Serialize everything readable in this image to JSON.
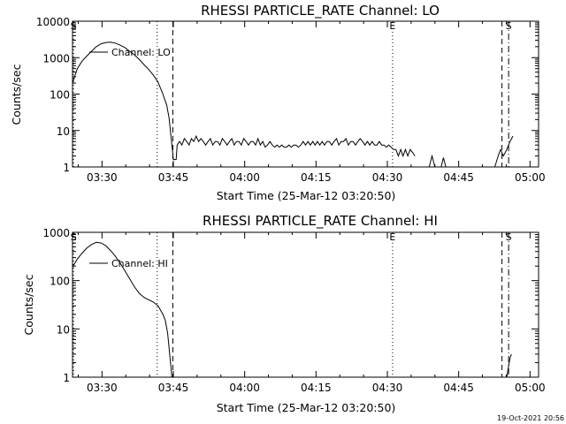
{
  "chart_data": [
    {
      "type": "line",
      "title": "RHESSI PARTICLE_RATE Channel: LO",
      "xlabel": "Start Time (25-Mar-12 03:20:50)",
      "ylabel": "Counts/sec",
      "yscale": "log",
      "ylim": [
        1,
        10000
      ],
      "xlim_minutes": [
        3.0,
        101.0
      ],
      "x_ticks": [
        {
          "label": "03:30",
          "min": 9.2
        },
        {
          "label": "03:45",
          "min": 24.2
        },
        {
          "label": "04:00",
          "min": 39.2
        },
        {
          "label": "04:15",
          "min": 54.2
        },
        {
          "label": "04:30",
          "min": 69.2
        },
        {
          "label": "04:45",
          "min": 84.2
        },
        {
          "label": "05:00",
          "min": 99.2
        }
      ],
      "y_ticks": [
        {
          "label": "1",
          "value": 1
        },
        {
          "label": "10",
          "value": 10
        },
        {
          "label": "100",
          "value": 100
        },
        {
          "label": "1000",
          "value": 1000
        },
        {
          "label": "10000",
          "value": 10000
        }
      ],
      "legend": {
        "label": "Channel: LO",
        "placement": "top-left"
      },
      "markers": [
        {
          "label": "S",
          "min": 3.2,
          "style": "dotted"
        },
        {
          "label": "",
          "min": 20.8,
          "style": "dotted"
        },
        {
          "label": "",
          "min": 24.1,
          "style": "dashed"
        },
        {
          "label": "E",
          "min": 70.3,
          "style": "dotted"
        },
        {
          "label": "",
          "min": 93.3,
          "style": "dashed"
        },
        {
          "label": "S",
          "min": 94.7,
          "style": "dashdot"
        }
      ],
      "series": [
        {
          "name": "Channel: LO",
          "segments": [
            [
              [
                3.0,
                200
              ],
              [
                4.0,
                500
              ],
              [
                5.0,
                800
              ],
              [
                6.0,
                1100
              ],
              [
                7.0,
                1500
              ],
              [
                8.0,
                2000
              ],
              [
                9.0,
                2400
              ],
              [
                10.0,
                2600
              ],
              [
                11.0,
                2650
              ],
              [
                12.0,
                2500
              ],
              [
                13.0,
                2200
              ],
              [
                14.0,
                1900
              ],
              [
                15.0,
                1500
              ],
              [
                16.0,
                1200
              ],
              [
                17.0,
                900
              ],
              [
                18.0,
                650
              ],
              [
                19.0,
                480
              ],
              [
                20.0,
                330
              ],
              [
                21.0,
                210
              ],
              [
                22.0,
                100
              ],
              [
                22.8,
                50
              ],
              [
                23.3,
                22
              ],
              [
                23.7,
                7
              ],
              [
                24.0,
                3
              ],
              [
                24.2,
                1.6
              ],
              [
                24.8,
                1.6
              ],
              [
                25.0,
                4
              ],
              [
                25.5,
                5
              ],
              [
                26,
                4
              ],
              [
                26.5,
                6
              ],
              [
                27,
                5
              ],
              [
                27.5,
                4
              ],
              [
                28,
                6
              ],
              [
                28.5,
                5
              ],
              [
                29,
                7
              ],
              [
                29.5,
                5
              ],
              [
                30,
                6
              ],
              [
                30.5,
                5
              ],
              [
                31,
                4
              ],
              [
                31.5,
                5
              ],
              [
                32,
                6
              ],
              [
                32.5,
                4
              ],
              [
                33,
                5
              ],
              [
                33.5,
                5
              ],
              [
                34,
                4
              ],
              [
                34.5,
                6
              ],
              [
                35,
                5
              ],
              [
                35.5,
                4
              ],
              [
                36,
                5
              ],
              [
                36.5,
                6
              ],
              [
                37,
                4
              ],
              [
                37.5,
                5
              ],
              [
                38,
                5
              ],
              [
                38.5,
                4
              ],
              [
                39,
                6
              ],
              [
                39.5,
                5
              ],
              [
                40,
                4
              ],
              [
                40.5,
                5
              ],
              [
                41,
                5
              ],
              [
                41.5,
                4
              ],
              [
                42,
                6
              ],
              [
                42.5,
                4
              ],
              [
                43,
                5
              ],
              [
                43.5,
                3.5
              ],
              [
                44,
                4
              ],
              [
                44.5,
                5
              ],
              [
                45,
                4
              ],
              [
                45.5,
                3.5
              ],
              [
                46,
                4
              ],
              [
                46.5,
                3.5
              ],
              [
                47,
                4
              ],
              [
                47.5,
                3.5
              ],
              [
                48,
                3.5
              ],
              [
                48.5,
                4
              ],
              [
                49,
                3.5
              ],
              [
                49.5,
                4
              ],
              [
                50,
                4
              ],
              [
                50.5,
                3.5
              ],
              [
                51,
                4
              ],
              [
                51.5,
                5
              ],
              [
                52,
                4
              ],
              [
                52.5,
                5
              ],
              [
                53,
                4
              ],
              [
                53.5,
                5
              ],
              [
                54,
                4
              ],
              [
                54.5,
                5
              ],
              [
                55,
                4
              ],
              [
                55.5,
                5
              ],
              [
                56,
                4
              ],
              [
                56.5,
                5
              ],
              [
                57,
                5
              ],
              [
                57.5,
                4
              ],
              [
                58,
                5
              ],
              [
                58.5,
                6
              ],
              [
                59,
                4
              ],
              [
                59.5,
                5
              ],
              [
                60,
                5
              ],
              [
                60.5,
                6
              ],
              [
                61,
                4
              ],
              [
                61.5,
                5
              ],
              [
                62,
                5
              ],
              [
                62.5,
                4
              ],
              [
                63,
                5
              ],
              [
                63.5,
                6
              ],
              [
                64,
                5
              ],
              [
                64.5,
                4
              ],
              [
                65,
                5
              ],
              [
                65.5,
                4
              ],
              [
                66,
                5
              ],
              [
                66.5,
                4
              ],
              [
                67,
                4
              ],
              [
                67.5,
                5
              ],
              [
                68,
                4
              ],
              [
                68.5,
                4
              ],
              [
                69,
                3.5
              ],
              [
                69.5,
                4
              ],
              [
                70,
                3.5
              ],
              [
                70.5,
                3
              ],
              [
                71,
                3
              ],
              [
                71.5,
                2
              ],
              [
                72,
                3
              ],
              [
                72.5,
                2
              ],
              [
                73,
                3
              ],
              [
                73.5,
                2
              ],
              [
                74,
                3
              ],
              [
                74.5,
                2.5
              ],
              [
                75,
                2
              ]
            ],
            [
              [
                78.0,
                1
              ],
              [
                78.6,
                2
              ],
              [
                79.2,
                1
              ]
            ],
            [
              [
                80.5,
                1
              ],
              [
                81.0,
                1.8
              ],
              [
                81.5,
                1
              ]
            ],
            [
              [
                91.8,
                1
              ],
              [
                92.5,
                2
              ],
              [
                93.0,
                3
              ],
              [
                93.6,
                2
              ],
              [
                94.3,
                3
              ],
              [
                95.0,
                5
              ],
              [
                95.6,
                7
              ]
            ]
          ]
        }
      ]
    },
    {
      "type": "line",
      "title": "RHESSI PARTICLE_RATE Channel: HI",
      "xlabel": "Start Time (25-Mar-12 03:20:50)",
      "ylabel": "Counts/sec",
      "yscale": "log",
      "ylim": [
        1,
        1000
      ],
      "xlim_minutes": [
        3.0,
        101.0
      ],
      "x_ticks": [
        {
          "label": "03:30",
          "min": 9.2
        },
        {
          "label": "03:45",
          "min": 24.2
        },
        {
          "label": "04:00",
          "min": 39.2
        },
        {
          "label": "04:15",
          "min": 54.2
        },
        {
          "label": "04:30",
          "min": 69.2
        },
        {
          "label": "04:45",
          "min": 84.2
        },
        {
          "label": "05:00",
          "min": 99.2
        }
      ],
      "y_ticks": [
        {
          "label": "1",
          "value": 1
        },
        {
          "label": "10",
          "value": 10
        },
        {
          "label": "100",
          "value": 100
        },
        {
          "label": "1000",
          "value": 1000
        }
      ],
      "legend": {
        "label": "Channel: HI",
        "placement": "top-left"
      },
      "markers": [
        {
          "label": "S",
          "min": 3.2,
          "style": "dotted"
        },
        {
          "label": "",
          "min": 20.8,
          "style": "dotted"
        },
        {
          "label": "",
          "min": 24.1,
          "style": "dashed"
        },
        {
          "label": "E",
          "min": 70.3,
          "style": "dotted"
        },
        {
          "label": "",
          "min": 93.3,
          "style": "dashed"
        },
        {
          "label": "S",
          "min": 94.7,
          "style": "dashdot"
        }
      ],
      "series": [
        {
          "name": "Channel: HI",
          "segments": [
            [
              [
                3.0,
                190
              ],
              [
                4.0,
                280
              ],
              [
                5.0,
                370
              ],
              [
                6.0,
                470
              ],
              [
                7.0,
                560
              ],
              [
                8.0,
                620
              ],
              [
                9.0,
                600
              ],
              [
                10.0,
                530
              ],
              [
                11.0,
                420
              ],
              [
                12.0,
                320
              ],
              [
                13.0,
                230
              ],
              [
                14.0,
                160
              ],
              [
                15.0,
                110
              ],
              [
                16.0,
                75
              ],
              [
                17.0,
                55
              ],
              [
                18.0,
                45
              ],
              [
                19.0,
                40
              ],
              [
                20.0,
                36
              ],
              [
                21.0,
                30
              ],
              [
                22.0,
                20
              ],
              [
                22.5,
                15
              ],
              [
                23.0,
                8
              ],
              [
                23.3,
                4
              ],
              [
                23.6,
                2
              ],
              [
                23.9,
                1
              ]
            ],
            [
              [
                94.3,
                1
              ],
              [
                94.6,
                1.5
              ],
              [
                95.0,
                2.5
              ],
              [
                95.3,
                3
              ]
            ]
          ]
        }
      ]
    }
  ],
  "timestamp": "19-Oct-2021 20:56",
  "colors": {
    "background": "#ffffff",
    "ink": "#000000"
  }
}
